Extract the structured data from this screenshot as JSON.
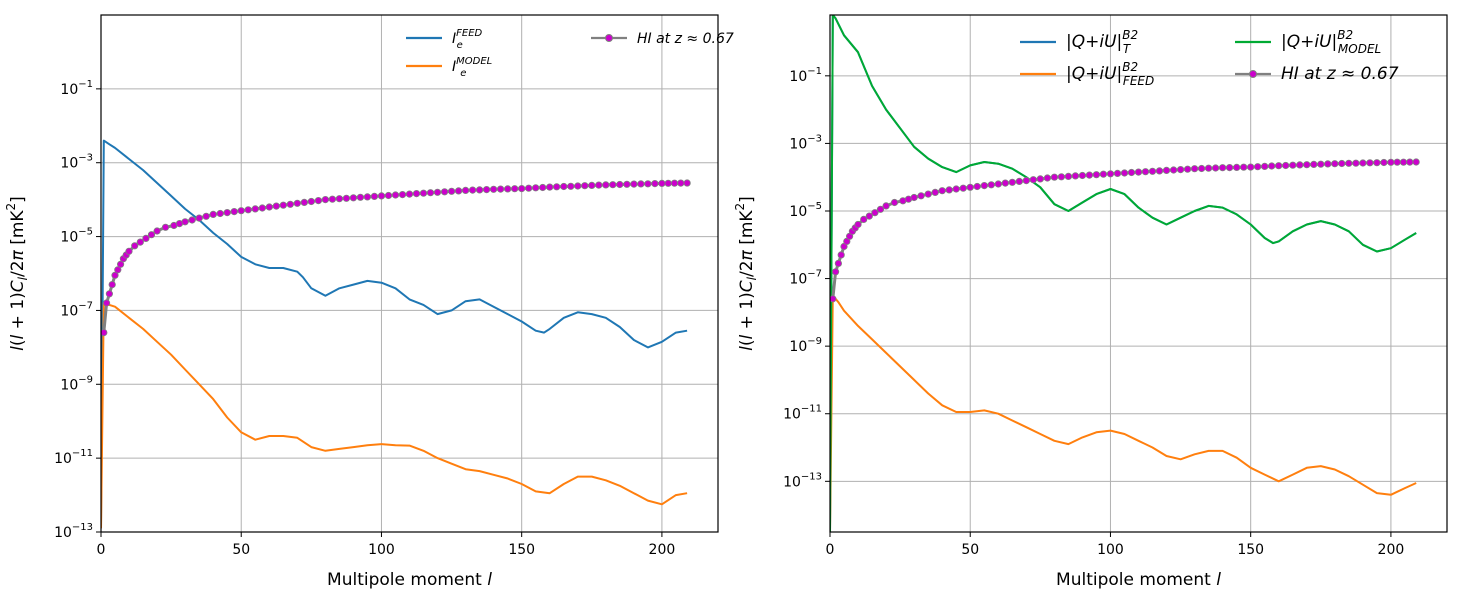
{
  "chart_data": [
    {
      "type": "line",
      "xlabel": "Multipole moment l",
      "ylabel": "l(l+1)C_l/2π [mK²]",
      "xlim": [
        0,
        220
      ],
      "ylim_log10": [
        -13,
        1
      ],
      "yscale": "log",
      "grid": true,
      "legend_placement": "top-right (two columns)",
      "x_ticks": [
        "0",
        "50",
        "100",
        "150",
        "200"
      ],
      "y_tick_exponents": [
        "-1",
        "-3",
        "-5",
        "-7",
        "-9",
        "-11",
        "-13"
      ],
      "series": [
        {
          "name": "I_e^FEED",
          "color": "#1f77b4",
          "x": [
            0,
            1,
            3,
            5,
            10,
            15,
            20,
            25,
            30,
            35,
            40,
            45,
            50,
            55,
            60,
            65,
            70,
            72,
            75,
            80,
            85,
            90,
            95,
            100,
            105,
            110,
            115,
            120,
            125,
            130,
            135,
            140,
            145,
            150,
            155,
            158,
            160,
            165,
            170,
            175,
            180,
            185,
            190,
            195,
            200,
            205,
            209
          ],
          "log10_y": [
            -12.9,
            -2.4,
            -2.5,
            -2.6,
            -2.9,
            -3.2,
            -3.55,
            -3.9,
            -4.25,
            -4.55,
            -4.9,
            -5.2,
            -5.55,
            -5.75,
            -5.85,
            -5.85,
            -5.95,
            -6.1,
            -6.4,
            -6.6,
            -6.4,
            -6.3,
            -6.2,
            -6.25,
            -6.4,
            -6.7,
            -6.85,
            -7.1,
            -7.0,
            -6.75,
            -6.7,
            -6.9,
            -7.1,
            -7.3,
            -7.55,
            -7.6,
            -7.5,
            -7.2,
            -7.05,
            -7.1,
            -7.2,
            -7.45,
            -7.8,
            -8.0,
            -7.85,
            -7.6,
            -7.55
          ]
        },
        {
          "name": "I_e^MODEL",
          "color": "#ff7f0e",
          "x": [
            0,
            1,
            3,
            5,
            10,
            15,
            20,
            25,
            30,
            35,
            40,
            45,
            50,
            55,
            60,
            65,
            70,
            75,
            80,
            85,
            90,
            95,
            100,
            105,
            110,
            115,
            120,
            125,
            130,
            135,
            140,
            145,
            150,
            155,
            160,
            165,
            170,
            175,
            180,
            185,
            190,
            195,
            200,
            205,
            209
          ],
          "log10_y": [
            -12.9,
            -6.8,
            -6.85,
            -6.9,
            -7.2,
            -7.5,
            -7.85,
            -8.2,
            -8.6,
            -9.0,
            -9.4,
            -9.9,
            -10.3,
            -10.5,
            -10.4,
            -10.4,
            -10.45,
            -10.7,
            -10.8,
            -10.75,
            -10.7,
            -10.65,
            -10.62,
            -10.65,
            -10.66,
            -10.8,
            -11.0,
            -11.15,
            -11.3,
            -11.35,
            -11.45,
            -11.55,
            -11.7,
            -11.9,
            -11.95,
            -11.7,
            -11.5,
            -11.5,
            -11.6,
            -11.75,
            -11.95,
            -12.15,
            -12.25,
            -12.0,
            -11.95
          ]
        },
        {
          "name": "HI at z ≈ 0.67",
          "color": "#808080",
          "marker_color": "#cc00cc",
          "x": [
            1,
            2,
            3,
            4,
            5,
            6,
            7,
            8,
            9,
            10,
            12,
            14,
            16,
            18,
            20,
            23,
            26,
            30,
            35,
            40,
            45,
            50,
            55,
            60,
            70,
            80,
            90,
            100,
            110,
            120,
            130,
            140,
            150,
            160,
            170,
            180,
            190,
            200,
            209
          ],
          "log10_y": [
            -7.6,
            -6.8,
            -6.55,
            -6.3,
            -6.05,
            -5.9,
            -5.75,
            -5.6,
            -5.5,
            -5.4,
            -5.25,
            -5.15,
            -5.05,
            -4.95,
            -4.85,
            -4.75,
            -4.7,
            -4.6,
            -4.5,
            -4.4,
            -4.35,
            -4.3,
            -4.25,
            -4.2,
            -4.1,
            -4.0,
            -3.95,
            -3.9,
            -3.85,
            -3.8,
            -3.75,
            -3.72,
            -3.7,
            -3.66,
            -3.63,
            -3.6,
            -3.58,
            -3.56,
            -3.55
          ]
        }
      ]
    },
    {
      "type": "line",
      "xlabel": "Multipole moment l",
      "ylabel": "l(l+1)C_l/2π [mK²]",
      "xlim": [
        0,
        220
      ],
      "ylim_log10": [
        -14.5,
        0.8
      ],
      "yscale": "log",
      "grid": true,
      "legend_placement": "top-right (two columns)",
      "x_ticks": [
        "0",
        "50",
        "100",
        "150",
        "200"
      ],
      "y_tick_exponents": [
        "-1",
        "-3",
        "-5",
        "-7",
        "-9",
        "-11",
        "-13"
      ],
      "series": [
        {
          "name": "|Q+iU|_T^B2",
          "color": "#1f77b4",
          "x": [
            0,
            1,
            2,
            5,
            10,
            15,
            20,
            25,
            30,
            35,
            40,
            45,
            50,
            55,
            60,
            65,
            70,
            75,
            80,
            85,
            90,
            95,
            100,
            105,
            110,
            115,
            120,
            125,
            130,
            135,
            140,
            145,
            150,
            155,
            158,
            160,
            165,
            170,
            175,
            180,
            185,
            190,
            195,
            200,
            205,
            209
          ],
          "log10_y": [
            -14.5,
            0.8,
            0.7,
            0.2,
            -0.3,
            -1.3,
            -2.0,
            -2.55,
            -3.1,
            -3.45,
            -3.7,
            -3.85,
            -3.65,
            -3.55,
            -3.6,
            -3.75,
            -4.0,
            -4.3,
            -4.8,
            -5.0,
            -4.75,
            -4.5,
            -4.35,
            -4.5,
            -4.9,
            -5.2,
            -5.4,
            -5.2,
            -5.0,
            -4.85,
            -4.9,
            -5.1,
            -5.4,
            -5.8,
            -5.95,
            -5.9,
            -5.6,
            -5.4,
            -5.3,
            -5.4,
            -5.6,
            -6.0,
            -6.2,
            -6.1,
            -5.85,
            -5.65
          ]
        },
        {
          "name": "|Q+iU|_FEED^B2",
          "color": "#ff7f0e",
          "x": [
            0,
            1,
            3,
            5,
            10,
            15,
            20,
            25,
            30,
            35,
            40,
            45,
            50,
            55,
            60,
            65,
            70,
            75,
            80,
            85,
            90,
            95,
            100,
            105,
            110,
            115,
            120,
            125,
            130,
            135,
            140,
            145,
            150,
            155,
            160,
            165,
            170,
            175,
            180,
            185,
            190,
            195,
            200,
            205,
            209
          ],
          "log10_y": [
            -14.5,
            -7.5,
            -7.7,
            -7.95,
            -8.4,
            -8.8,
            -9.2,
            -9.6,
            -10.0,
            -10.4,
            -10.75,
            -10.95,
            -10.95,
            -10.9,
            -11.0,
            -11.2,
            -11.4,
            -11.6,
            -11.8,
            -11.9,
            -11.7,
            -11.55,
            -11.5,
            -11.6,
            -11.8,
            -12.0,
            -12.25,
            -12.35,
            -12.2,
            -12.1,
            -12.1,
            -12.3,
            -12.6,
            -12.8,
            -13.0,
            -12.8,
            -12.6,
            -12.55,
            -12.65,
            -12.85,
            -13.1,
            -13.35,
            -13.4,
            -13.2,
            -13.05
          ]
        },
        {
          "name": "|Q+iU|_MODEL^B2",
          "color": "#00aa33",
          "x": [
            0,
            1,
            2,
            5,
            10,
            15,
            20,
            25,
            30,
            35,
            40,
            45,
            50,
            55,
            60,
            65,
            70,
            75,
            80,
            85,
            90,
            95,
            100,
            105,
            110,
            115,
            120,
            125,
            130,
            135,
            140,
            145,
            150,
            155,
            158,
            160,
            165,
            170,
            175,
            180,
            185,
            190,
            195,
            200,
            205,
            209
          ],
          "log10_y": [
            -14.5,
            0.8,
            0.7,
            0.2,
            -0.3,
            -1.3,
            -2.0,
            -2.55,
            -3.1,
            -3.45,
            -3.7,
            -3.85,
            -3.65,
            -3.55,
            -3.6,
            -3.75,
            -4.0,
            -4.3,
            -4.8,
            -5.0,
            -4.75,
            -4.5,
            -4.35,
            -4.5,
            -4.9,
            -5.2,
            -5.4,
            -5.2,
            -5.0,
            -4.85,
            -4.9,
            -5.1,
            -5.4,
            -5.8,
            -5.95,
            -5.9,
            -5.6,
            -5.4,
            -5.3,
            -5.4,
            -5.6,
            -6.0,
            -6.2,
            -6.1,
            -5.85,
            -5.65
          ]
        },
        {
          "name": "HI at z ≈ 0.67",
          "color": "#808080",
          "marker_color": "#cc00cc",
          "x": [
            1,
            2,
            3,
            4,
            5,
            6,
            7,
            8,
            9,
            10,
            12,
            14,
            16,
            18,
            20,
            23,
            26,
            30,
            35,
            40,
            45,
            50,
            55,
            60,
            70,
            80,
            90,
            100,
            110,
            120,
            130,
            140,
            150,
            160,
            170,
            180,
            190,
            200,
            209
          ],
          "log10_y": [
            -7.6,
            -6.8,
            -6.55,
            -6.3,
            -6.05,
            -5.9,
            -5.75,
            -5.6,
            -5.5,
            -5.4,
            -5.25,
            -5.15,
            -5.05,
            -4.95,
            -4.85,
            -4.75,
            -4.7,
            -4.6,
            -4.5,
            -4.4,
            -4.35,
            -4.3,
            -4.25,
            -4.2,
            -4.1,
            -4.0,
            -3.95,
            -3.9,
            -3.85,
            -3.8,
            -3.75,
            -3.72,
            -3.7,
            -3.66,
            -3.63,
            -3.6,
            -3.58,
            -3.56,
            -3.55
          ]
        }
      ]
    }
  ]
}
